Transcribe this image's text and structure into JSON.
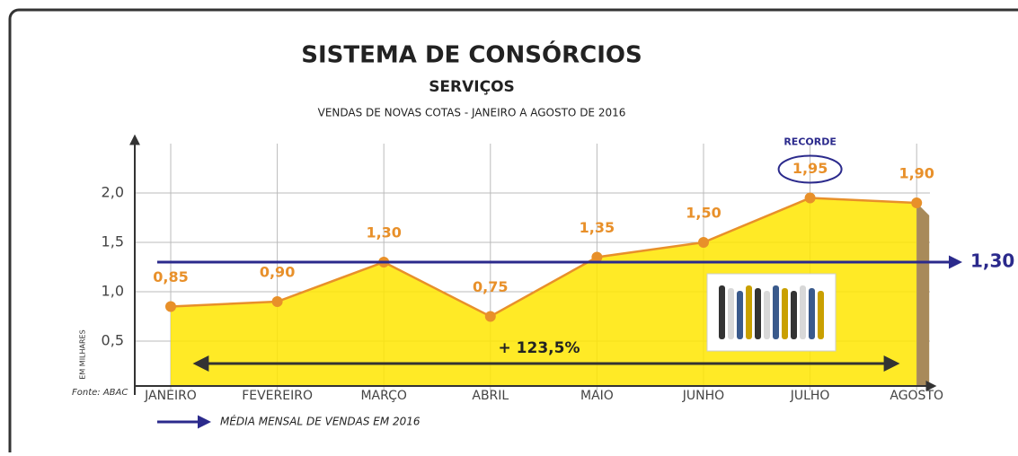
{
  "chart_data": {
    "type": "area",
    "title": "SISTEMA DE CONSÓRCIOS",
    "subtitle": "SERVIÇOS",
    "description": "VENDAS DE NOVAS COTAS - JANEIRO A AGOSTO DE 2016",
    "y_label": "EM MILHARES",
    "source": "Fonte: ABAC",
    "categories": [
      "JANEIRO",
      "FEVEREIRO",
      "MARÇO",
      "ABRIL",
      "MAIO",
      "JUNHO",
      "JULHO",
      "AGOSTO"
    ],
    "values": [
      0.85,
      0.9,
      1.3,
      0.75,
      1.35,
      1.5,
      1.95,
      1.9
    ],
    "value_labels": [
      "0,85",
      "0,90",
      "1,30",
      "0,75",
      "1,35",
      "1,50",
      "1,95",
      "1,90"
    ],
    "color": "#e8902a",
    "fill_color": "#ffe600",
    "ylim": [
      0,
      2.5
    ],
    "yticks": [
      {
        "value": 0.5,
        "label": "0,5"
      },
      {
        "value": 1.0,
        "label": "1,0"
      },
      {
        "value": 1.5,
        "label": "1,5"
      },
      {
        "value": 2.0,
        "label": "2,0"
      }
    ],
    "grid": true,
    "average": 1.3,
    "average_label": "1,30",
    "average_legend": "MÉDIA MENSAL DE VENDAS EM 2016",
    "average_color": "#2b2a8c",
    "record_index": 6,
    "record_label": "RECORDE",
    "growth_label": "+ 123,5%"
  }
}
